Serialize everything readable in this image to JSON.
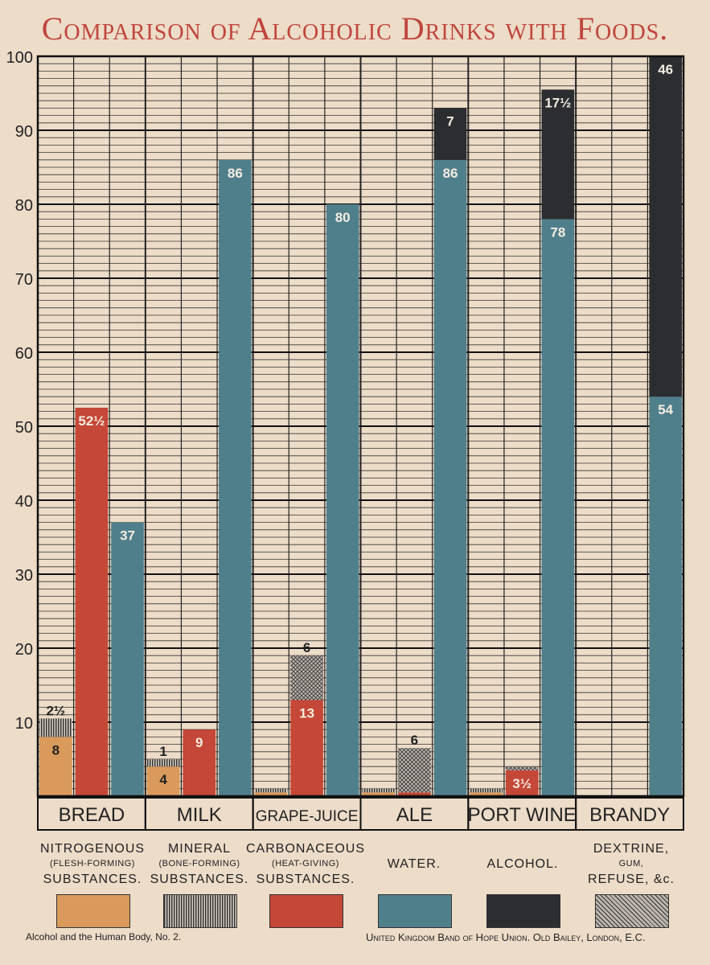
{
  "title": "Comparison of Alcoholic Drinks with Foods.",
  "chart_data": {
    "type": "bar",
    "subtype": "grouped-stacked",
    "ylim": [
      0,
      100
    ],
    "yticks": [
      "10",
      "20",
      "30",
      "40",
      "50",
      "60",
      "70",
      "80",
      "90",
      "100"
    ],
    "grid": true,
    "categories": [
      "BREAD",
      "MILK",
      "GRAPE-JUICE",
      "ALE",
      "PORT WINE",
      "BRANDY"
    ],
    "bars": [
      {
        "category": "BREAD",
        "segments": [
          {
            "component": "nitrogenous",
            "value": 8,
            "label": "8"
          },
          {
            "component": "mineral",
            "value": 2.5,
            "label": "2½"
          }
        ]
      },
      {
        "category": "BREAD",
        "segments": [
          {
            "component": "carbonaceous",
            "value": 52.5,
            "label": "52½"
          }
        ]
      },
      {
        "category": "BREAD",
        "segments": [
          {
            "component": "water",
            "value": 37,
            "label": "37"
          }
        ]
      },
      {
        "category": "MILK",
        "segments": [
          {
            "component": "nitrogenous",
            "value": 4,
            "label": "4"
          },
          {
            "component": "mineral",
            "value": 1,
            "label": "1"
          }
        ]
      },
      {
        "category": "MILK",
        "segments": [
          {
            "component": "carbonaceous",
            "value": 9,
            "label": "9"
          }
        ]
      },
      {
        "category": "MILK",
        "segments": [
          {
            "component": "water",
            "value": 86,
            "label": "86"
          }
        ]
      },
      {
        "category": "GRAPE-JUICE",
        "segments": [
          {
            "component": "nitrogenous",
            "value": 0.5,
            "label": ""
          },
          {
            "component": "mineral",
            "value": 0.5,
            "label": ""
          }
        ]
      },
      {
        "category": "GRAPE-JUICE",
        "segments": [
          {
            "component": "carbonaceous",
            "value": 13,
            "label": "13"
          },
          {
            "component": "dextrine",
            "value": 6,
            "label": "6"
          }
        ]
      },
      {
        "category": "GRAPE-JUICE",
        "segments": [
          {
            "component": "water",
            "value": 80,
            "label": "80"
          }
        ]
      },
      {
        "category": "ALE",
        "segments": [
          {
            "component": "nitrogenous",
            "value": 0.5,
            "label": ""
          },
          {
            "component": "mineral",
            "value": 0.5,
            "label": ""
          }
        ]
      },
      {
        "category": "ALE",
        "segments": [
          {
            "component": "carbonaceous",
            "value": 0.5,
            "label": ""
          },
          {
            "component": "dextrine",
            "value": 6,
            "label": "6"
          }
        ]
      },
      {
        "category": "ALE",
        "segments": [
          {
            "component": "water",
            "value": 86,
            "label": "86"
          },
          {
            "component": "alcohol",
            "value": 7,
            "label": "7"
          }
        ]
      },
      {
        "category": "PORT WINE",
        "segments": [
          {
            "component": "nitrogenous",
            "value": 0.5,
            "label": ""
          },
          {
            "component": "mineral",
            "value": 0.5,
            "label": ""
          }
        ]
      },
      {
        "category": "PORT WINE",
        "segments": [
          {
            "component": "carbonaceous",
            "value": 3.5,
            "label": "3½"
          },
          {
            "component": "dextrine",
            "value": 0.5,
            "label": ""
          }
        ]
      },
      {
        "category": "PORT WINE",
        "segments": [
          {
            "component": "water",
            "value": 78,
            "label": "78"
          },
          {
            "component": "alcohol",
            "value": 17.5,
            "label": "17½"
          }
        ]
      },
      {
        "category": "BRANDY",
        "segments": []
      },
      {
        "category": "BRANDY",
        "segments": []
      },
      {
        "category": "BRANDY",
        "segments": [
          {
            "component": "water",
            "value": 54,
            "label": "54"
          },
          {
            "component": "alcohol",
            "value": 46,
            "label": "46"
          }
        ]
      }
    ],
    "legend": [
      {
        "key": "nitrogenous",
        "line1": "NITROGENOUS",
        "line2": "(FLESH-FORMING)",
        "line3": "SUBSTANCES.",
        "color": "#d99a5b"
      },
      {
        "key": "mineral",
        "line1": "MINERAL",
        "line2": "(BONE-FORMING)",
        "line3": "SUBSTANCES.",
        "color": "#9a9a9a"
      },
      {
        "key": "carbonaceous",
        "line1": "CARBONACEOUS",
        "line2": "(HEAT-GIVING)",
        "line3": "SUBSTANCES.",
        "color": "#c44737"
      },
      {
        "key": "water",
        "line1": "",
        "line2": "WATER.",
        "line3": "",
        "color": "#507f8c"
      },
      {
        "key": "alcohol",
        "line1": "",
        "line2": "ALCOHOL.",
        "line3": "",
        "color": "#2b2d30"
      },
      {
        "key": "dextrine",
        "line1": "DEXTRINE,",
        "line2": "GUM,",
        "line3": "REFUSE, &c.",
        "color": "#8c8a88"
      }
    ]
  },
  "footer": {
    "left": "Alcohol and the Human Body, No. 2.",
    "right": "United Kingdom Band of Hope Union. Old Bailey, London, E.C."
  }
}
